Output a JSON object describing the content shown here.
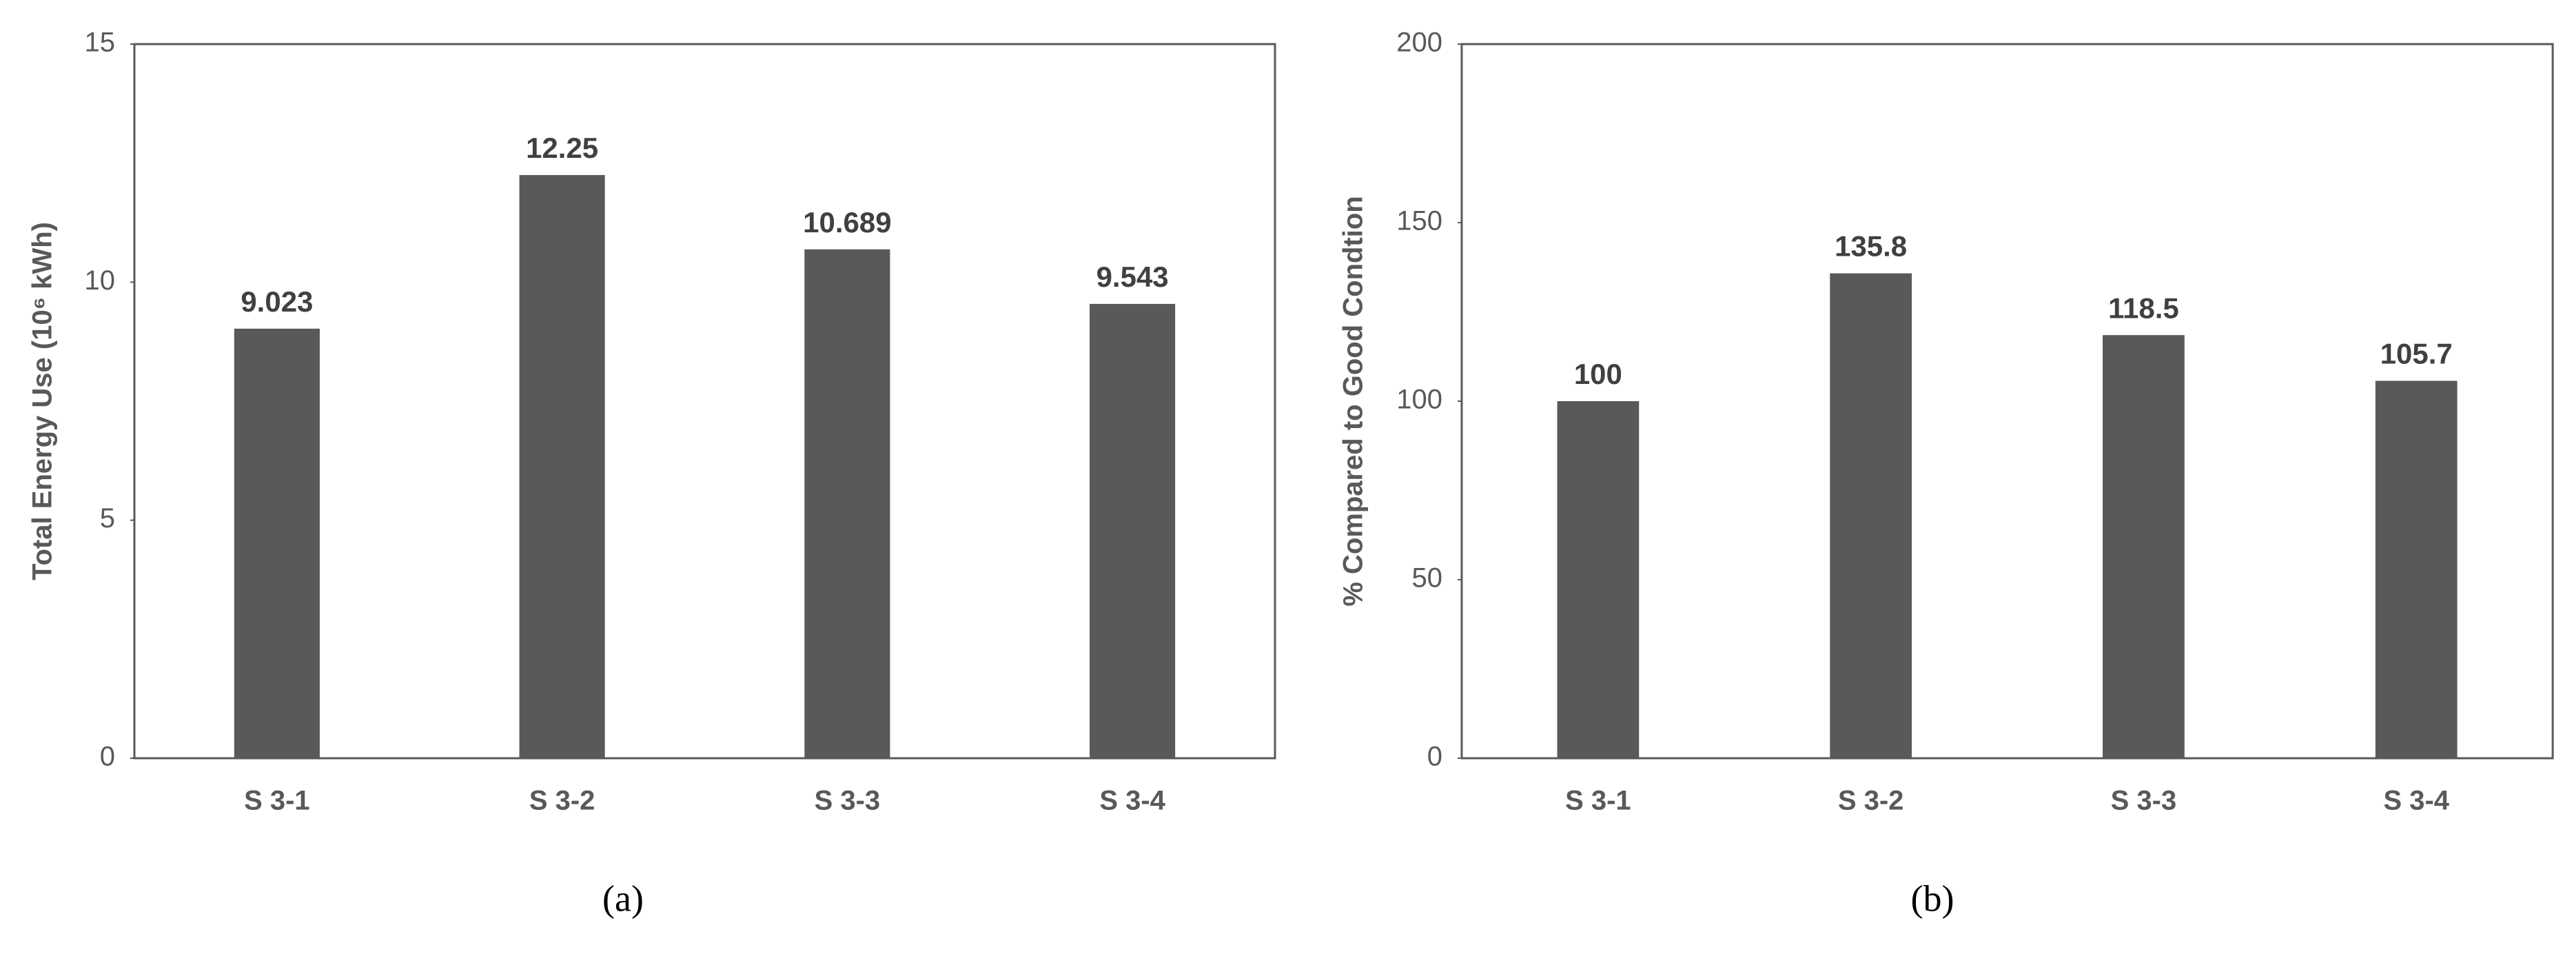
{
  "chart_data": [
    {
      "type": "bar",
      "ylabel": "Total Energy Use  (10⁶ kWh)",
      "caption": "(a)",
      "categories": [
        "S 3-1",
        "S 3-2",
        "S 3-3",
        "S 3-4"
      ],
      "values": [
        9.023,
        12.25,
        10.689,
        9.543
      ],
      "color": "#595959",
      "ylim": [
        0,
        15
      ],
      "yticks": [
        0,
        5,
        10,
        15
      ]
    },
    {
      "type": "bar",
      "ylabel": "% Compared to Good Condtion",
      "caption": "(b)",
      "categories": [
        "S 3-1",
        "S 3-2",
        "S 3-3",
        "S 3-4"
      ],
      "values": [
        100,
        135.8,
        118.5,
        105.7
      ],
      "color": "#595959",
      "ylim": [
        0,
        200
      ],
      "yticks": [
        0,
        50,
        100,
        150,
        200
      ]
    }
  ]
}
